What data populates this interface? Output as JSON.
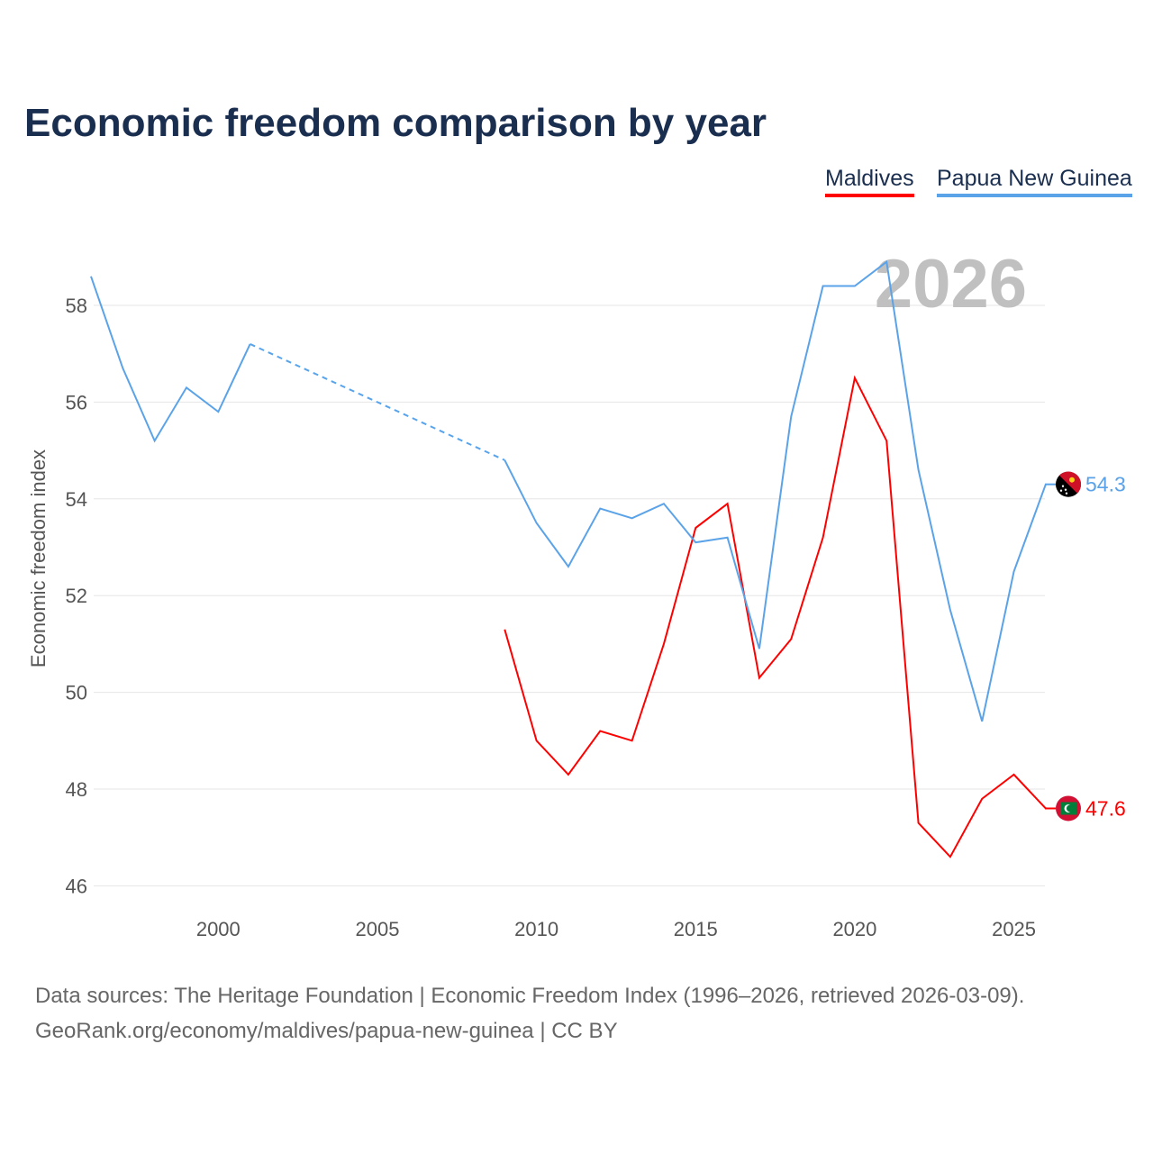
{
  "chart_data": {
    "type": "line",
    "title": "Economic freedom comparison by year",
    "xlabel": "",
    "ylabel": "Economic freedom index",
    "xlim": [
      1996,
      2026
    ],
    "ylim": [
      45.5,
      59.5
    ],
    "yticks": [
      46,
      48,
      50,
      52,
      54,
      56,
      58
    ],
    "xticks": [
      2000,
      2005,
      2010,
      2015,
      2020,
      2025
    ],
    "watermark_year": "2026",
    "x": [
      1996,
      1997,
      1998,
      1999,
      2000,
      2001,
      2002,
      2003,
      2004,
      2005,
      2006,
      2007,
      2008,
      2009,
      2010,
      2011,
      2012,
      2013,
      2014,
      2015,
      2016,
      2017,
      2018,
      2019,
      2020,
      2021,
      2022,
      2023,
      2024,
      2025,
      2026
    ],
    "series": [
      {
        "name": "Maldives",
        "color": "#ff0000",
        "end_label": "47.6",
        "values": [
          null,
          null,
          null,
          null,
          null,
          null,
          null,
          null,
          null,
          null,
          null,
          null,
          null,
          51.3,
          49.0,
          48.3,
          49.2,
          49.0,
          51.0,
          53.4,
          53.9,
          50.3,
          51.1,
          53.2,
          56.5,
          55.2,
          47.3,
          46.6,
          47.8,
          48.3,
          47.6
        ]
      },
      {
        "name": "Papua New Guinea",
        "color": "#5ba3e8",
        "end_label": "54.3",
        "values": [
          58.6,
          56.7,
          55.2,
          56.3,
          55.8,
          57.2,
          null,
          null,
          null,
          null,
          null,
          null,
          null,
          54.8,
          53.5,
          52.6,
          53.8,
          53.6,
          53.9,
          53.1,
          53.2,
          50.9,
          55.7,
          58.4,
          58.4,
          58.9,
          54.6,
          51.7,
          49.4,
          52.5,
          54.3
        ]
      }
    ],
    "legend_position": "top-right",
    "source": "Data sources: The Heritage Foundation | Economic Freedom Index (1996–2026, retrieved 2026-03-09).",
    "credit": "GeoRank.org/economy/maldives/papua-new-guinea | CC BY"
  }
}
